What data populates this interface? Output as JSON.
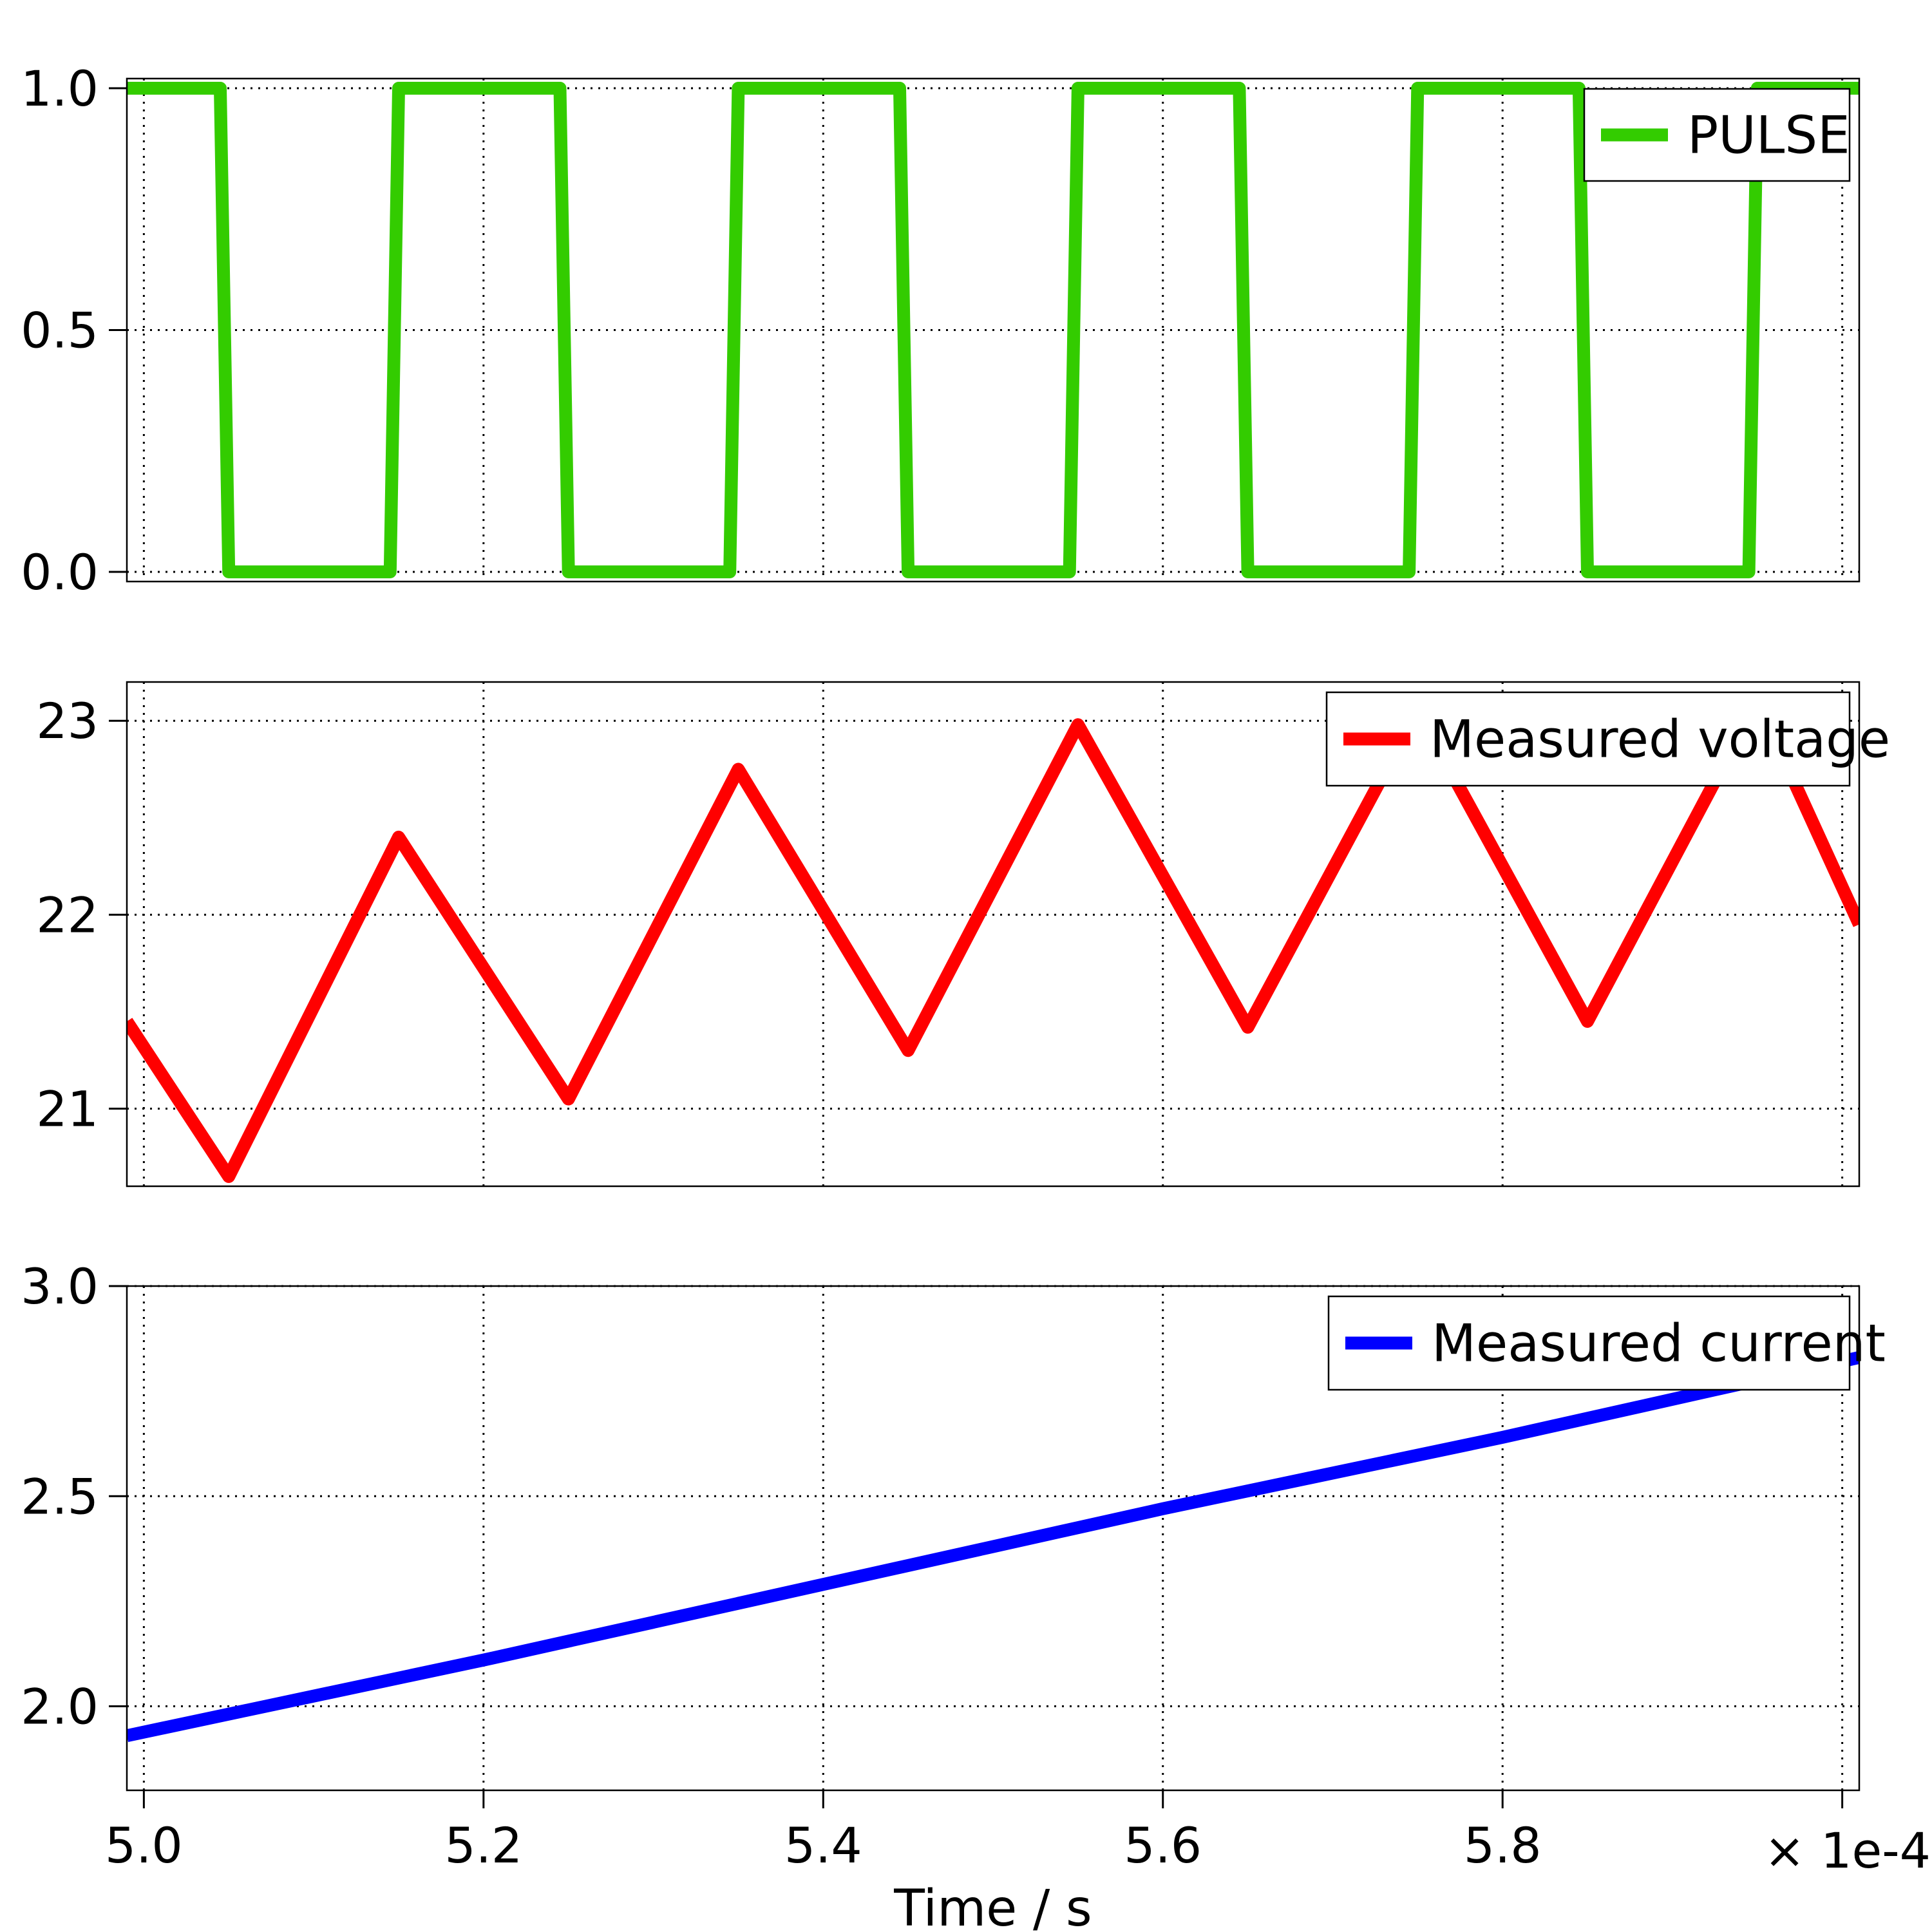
{
  "chart_data": [
    {
      "type": "line",
      "xlim": [
        4.99,
        6.01
      ],
      "ylim": [
        -0.02,
        1.02
      ],
      "yticks": [
        0.0,
        0.5,
        1.0
      ],
      "ytick_labels": [
        "0.0",
        "0.5",
        "1.0"
      ],
      "xticks": [
        5.0,
        5.2,
        5.4,
        5.6,
        5.8,
        6.0
      ],
      "grid": true,
      "legend_position": "top-right",
      "series": [
        {
          "name": "PULSE",
          "color": "#33cc00",
          "x": [
            4.99,
            5.045,
            5.05,
            5.145,
            5.15,
            5.245,
            5.25,
            5.345,
            5.35,
            5.445,
            5.45,
            5.545,
            5.55,
            5.645,
            5.65,
            5.745,
            5.75,
            5.845,
            5.85,
            5.945,
            5.95,
            6.01
          ],
          "y": [
            1,
            1,
            0,
            0,
            1,
            1,
            0,
            0,
            1,
            1,
            0,
            0,
            1,
            1,
            0,
            0,
            1,
            1,
            0,
            0,
            1,
            1
          ]
        }
      ]
    },
    {
      "type": "line",
      "xlim": [
        4.99,
        6.01
      ],
      "ylim": [
        20.6,
        23.2
      ],
      "yticks": [
        21,
        22,
        23
      ],
      "ytick_labels": [
        "21",
        "22",
        "23"
      ],
      "xticks": [
        5.0,
        5.2,
        5.4,
        5.6,
        5.8,
        6.0
      ],
      "grid": true,
      "legend_position": "top-right",
      "series": [
        {
          "name": "Measured voltage",
          "color": "#ff0000",
          "x": [
            4.99,
            5.05,
            5.15,
            5.25,
            5.35,
            5.45,
            5.55,
            5.65,
            5.75,
            5.85,
            5.95,
            6.01
          ],
          "y": [
            21.45,
            20.65,
            22.4,
            21.05,
            22.75,
            21.3,
            22.98,
            21.42,
            23.05,
            21.45,
            23.1,
            21.95
          ]
        }
      ]
    },
    {
      "type": "line",
      "xlim": [
        4.99,
        6.01
      ],
      "ylim": [
        1.8,
        3.0
      ],
      "yticks": [
        2.0,
        2.5,
        3.0
      ],
      "ytick_labels": [
        "2.0",
        "2.5",
        "3.0"
      ],
      "xticks": [
        5.0,
        5.2,
        5.4,
        5.6,
        5.8,
        6.0
      ],
      "xtick_labels": [
        "5.0",
        "5.2",
        "5.4",
        "5.6",
        "5.8"
      ],
      "xlabel": "Time / s",
      "x_offset_label": "× 1e-4",
      "grid": true,
      "legend_position": "top-right",
      "series": [
        {
          "name": "Measured current",
          "color": "#0000ff",
          "x": [
            4.99,
            5.2,
            5.4,
            5.6,
            5.8,
            6.01
          ],
          "y": [
            1.93,
            2.11,
            2.29,
            2.47,
            2.64,
            2.83
          ]
        }
      ]
    }
  ]
}
